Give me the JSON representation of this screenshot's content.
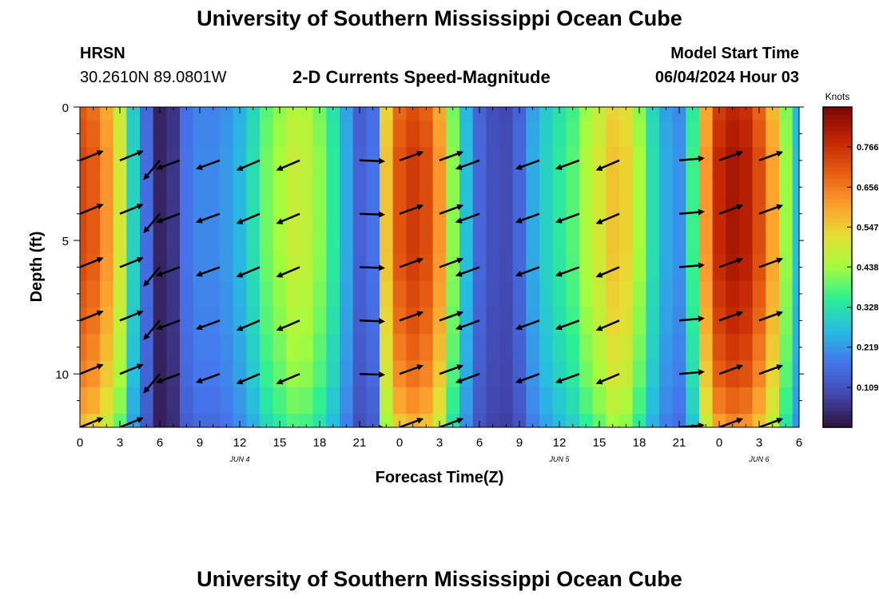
{
  "header": {
    "title": "University of Southern Mississippi Ocean Cube",
    "station_code": "HRSN",
    "coordinates": "30.2610N  89.0801W",
    "subtitle": "2-D Currents Speed-Magnitude",
    "model_start_label": "Model Start Time",
    "model_start_value": "06/04/2024 Hour 03"
  },
  "footer": {
    "title": "University of Southern Mississippi Ocean Cube"
  },
  "chart_data": {
    "type": "heatmap",
    "title": "2-D Currents Speed-Magnitude",
    "xlabel": "Forecast Time(Z)",
    "ylabel": "Depth (ft)",
    "x_hours_range": [
      0,
      54
    ],
    "ylim": [
      0,
      12
    ],
    "x_ticks": [
      {
        "h": 0,
        "label": "0"
      },
      {
        "h": 3,
        "label": "3"
      },
      {
        "h": 6,
        "label": "6"
      },
      {
        "h": 9,
        "label": "9"
      },
      {
        "h": 12,
        "label": "12"
      },
      {
        "h": 15,
        "label": "15"
      },
      {
        "h": 18,
        "label": "18"
      },
      {
        "h": 21,
        "label": "21"
      },
      {
        "h": 24,
        "label": "0"
      },
      {
        "h": 27,
        "label": "3"
      },
      {
        "h": 30,
        "label": "6"
      },
      {
        "h": 33,
        "label": "9"
      },
      {
        "h": 36,
        "label": "12"
      },
      {
        "h": 39,
        "label": "15"
      },
      {
        "h": 42,
        "label": "18"
      },
      {
        "h": 45,
        "label": "21"
      },
      {
        "h": 48,
        "label": "0"
      },
      {
        "h": 51,
        "label": "3"
      },
      {
        "h": 54,
        "label": "6"
      }
    ],
    "y_ticks": [
      {
        "v": 0,
        "label": "0"
      },
      {
        "v": 5,
        "label": "5"
      },
      {
        "v": 10,
        "label": "10"
      }
    ],
    "date_labels": [
      {
        "h": 12,
        "label": "JUN 4"
      },
      {
        "h": 36,
        "label": "JUN 5"
      },
      {
        "h": 51,
        "label": "JUN 6"
      }
    ],
    "colorbar": {
      "unit": "Knots",
      "min": 0.0,
      "max": 0.875,
      "ticks": [
        0.766,
        0.656,
        0.547,
        0.438,
        0.328,
        0.219,
        0.109
      ]
    },
    "speed_profile": [
      {
        "h": 0,
        "v": 0.73
      },
      {
        "h": 1,
        "v": 0.7
      },
      {
        "h": 2,
        "v": 0.62
      },
      {
        "h": 3,
        "v": 0.5
      },
      {
        "h": 4,
        "v": 0.3
      },
      {
        "h": 5,
        "v": 0.16
      },
      {
        "h": 6,
        "v": 0.03
      },
      {
        "h": 7,
        "v": 0.06
      },
      {
        "h": 8,
        "v": 0.17
      },
      {
        "h": 9,
        "v": 0.2
      },
      {
        "h": 10,
        "v": 0.2
      },
      {
        "h": 11,
        "v": 0.22
      },
      {
        "h": 12,
        "v": 0.26
      },
      {
        "h": 13,
        "v": 0.32
      },
      {
        "h": 14,
        "v": 0.4
      },
      {
        "h": 15,
        "v": 0.44
      },
      {
        "h": 16,
        "v": 0.48
      },
      {
        "h": 17,
        "v": 0.47
      },
      {
        "h": 18,
        "v": 0.42
      },
      {
        "h": 19,
        "v": 0.34
      },
      {
        "h": 20,
        "v": 0.24
      },
      {
        "h": 21,
        "v": 0.14
      },
      {
        "h": 22,
        "v": 0.17
      },
      {
        "h": 23,
        "v": 0.56
      },
      {
        "h": 24,
        "v": 0.71
      },
      {
        "h": 25,
        "v": 0.75
      },
      {
        "h": 26,
        "v": 0.72
      },
      {
        "h": 27,
        "v": 0.62
      },
      {
        "h": 28,
        "v": 0.42
      },
      {
        "h": 29,
        "v": 0.27
      },
      {
        "h": 30,
        "v": 0.15
      },
      {
        "h": 31,
        "v": 0.11
      },
      {
        "h": 32,
        "v": 0.1
      },
      {
        "h": 33,
        "v": 0.15
      },
      {
        "h": 34,
        "v": 0.24
      },
      {
        "h": 35,
        "v": 0.3
      },
      {
        "h": 36,
        "v": 0.34
      },
      {
        "h": 37,
        "v": 0.38
      },
      {
        "h": 38,
        "v": 0.45
      },
      {
        "h": 39,
        "v": 0.5
      },
      {
        "h": 40,
        "v": 0.56
      },
      {
        "h": 41,
        "v": 0.54
      },
      {
        "h": 42,
        "v": 0.44
      },
      {
        "h": 43,
        "v": 0.32
      },
      {
        "h": 44,
        "v": 0.24
      },
      {
        "h": 45,
        "v": 0.21
      },
      {
        "h": 46,
        "v": 0.36
      },
      {
        "h": 47,
        "v": 0.62
      },
      {
        "h": 48,
        "v": 0.78
      },
      {
        "h": 49,
        "v": 0.82
      },
      {
        "h": 50,
        "v": 0.8
      },
      {
        "h": 51,
        "v": 0.72
      },
      {
        "h": 52,
        "v": 0.6
      },
      {
        "h": 53,
        "v": 0.43
      },
      {
        "h": 54,
        "v": 0.27
      }
    ],
    "depth_rows": [
      0,
      1,
      2,
      3,
      4,
      5,
      6,
      7,
      8,
      9,
      10,
      11,
      12
    ],
    "depth_factor": [
      0.96,
      0.98,
      1.0,
      1.0,
      1.0,
      1.0,
      0.99,
      0.97,
      0.95,
      0.92,
      0.89,
      0.84,
      0.78
    ],
    "vector_depths": [
      2,
      4,
      6,
      8,
      10,
      12
    ],
    "vectors": [
      {
        "h": 0,
        "dir": -22
      },
      {
        "h": 3,
        "dir": -22
      },
      {
        "h": 6,
        "dir": 130
      },
      {
        "h": 7.5,
        "dir": 160
      },
      {
        "h": 10.5,
        "dir": 160
      },
      {
        "h": 13.5,
        "dir": 157
      },
      {
        "h": 16.5,
        "dir": 157
      },
      {
        "h": 21,
        "dir": 2
      },
      {
        "h": 24,
        "dir": -20
      },
      {
        "h": 27,
        "dir": -20
      },
      {
        "h": 30,
        "dir": 160
      },
      {
        "h": 34.5,
        "dir": 160
      },
      {
        "h": 37.5,
        "dir": 160
      },
      {
        "h": 40.5,
        "dir": 157
      },
      {
        "h": 45,
        "dir": -5
      },
      {
        "h": 48,
        "dir": -20
      },
      {
        "h": 51,
        "dir": -20
      }
    ]
  }
}
